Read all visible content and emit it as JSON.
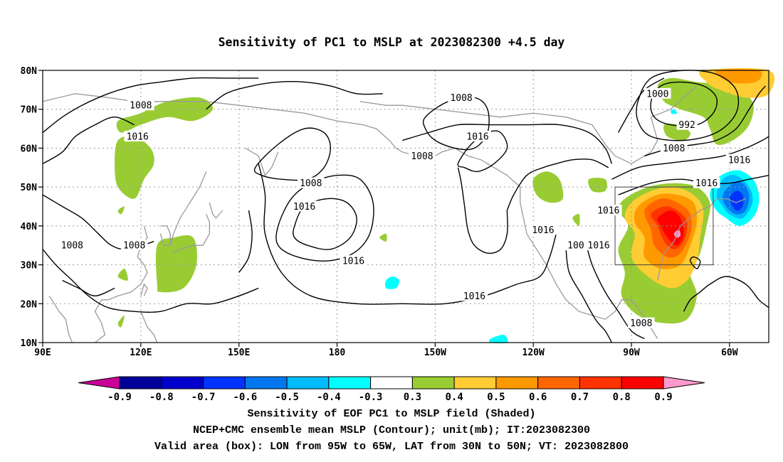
{
  "title": "Sensitivity of PC1 to MSLP at 2023082300 +4.5 day",
  "map": {
    "lat_ticks": [
      "80N",
      "70N",
      "60N",
      "50N",
      "40N",
      "30N",
      "20N",
      "10N"
    ],
    "lon_ticks": [
      "90E",
      "120E",
      "150E",
      "180",
      "150W",
      "120W",
      "90W",
      "60W"
    ],
    "extent": {
      "lon_min": 90,
      "lon_max": 312,
      "lat_min": 10,
      "lat_max": 80
    },
    "valid_box": {
      "lon_from": 265,
      "lon_to": 295,
      "lat_from": 30,
      "lat_to": 50
    },
    "contour_labels": [
      {
        "text": "1008",
        "lon": 120,
        "lat": 71
      },
      {
        "text": "1016",
        "lon": 119,
        "lat": 63
      },
      {
        "text": "1008",
        "lon": 172,
        "lat": 51
      },
      {
        "text": "1016",
        "lon": 170,
        "lat": 45
      },
      {
        "text": "1008",
        "lon": 99,
        "lat": 35
      },
      {
        "text": "1008",
        "lon": 118,
        "lat": 35
      },
      {
        "text": "1016",
        "lon": 185,
        "lat": 31
      },
      {
        "text": "1008",
        "lon": 218,
        "lat": 73
      },
      {
        "text": "1016",
        "lon": 223,
        "lat": 63
      },
      {
        "text": "1008",
        "lon": 206,
        "lat": 58
      },
      {
        "text": "1016",
        "lon": 243,
        "lat": 39
      },
      {
        "text": "1016",
        "lon": 263,
        "lat": 44
      },
      {
        "text": "1016",
        "lon": 260,
        "lat": 35
      },
      {
        "text": "100",
        "lon": 253,
        "lat": 35
      },
      {
        "text": "1016",
        "lon": 222,
        "lat": 22
      },
      {
        "text": "1000",
        "lon": 278,
        "lat": 74
      },
      {
        "text": "992",
        "lon": 287,
        "lat": 66
      },
      {
        "text": "1008",
        "lon": 283,
        "lat": 60
      },
      {
        "text": "1016",
        "lon": 303,
        "lat": 57
      },
      {
        "text": "1016",
        "lon": 293,
        "lat": 51
      },
      {
        "text": "1008",
        "lon": 273,
        "lat": 15
      }
    ]
  },
  "colorbar": {
    "labels": [
      "-0.9",
      "-0.8",
      "-0.7",
      "-0.6",
      "-0.5",
      "-0.4",
      "-0.3",
      "0.3",
      "0.4",
      "0.5",
      "0.6",
      "0.7",
      "0.8",
      "0.9"
    ],
    "colors": [
      "#cc0099",
      "#000099",
      "#0000cc",
      "#0033ff",
      "#0077ee",
      "#00bbff",
      "#00ffff",
      "#ffffff",
      "#99cc33",
      "#ffcc33",
      "#ff9900",
      "#ff6600",
      "#ff3300",
      "#ff0000",
      "#ff99cc"
    ]
  },
  "captions": {
    "line1": "Sensitivity of EOF PC1 to MSLP field (Shaded)",
    "line2": "NCEP+CMC ensemble mean MSLP (Contour); unit(mb); IT:2023082300",
    "line3": "Valid area (box): LON from 95W to 65W, LAT from 30N to 50N; VT: 2023082800"
  }
}
